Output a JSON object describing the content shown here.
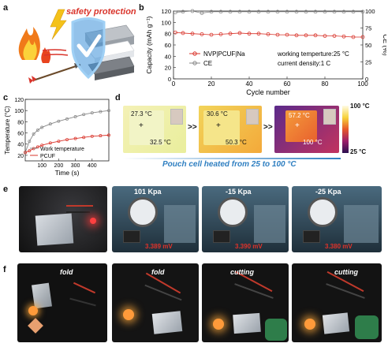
{
  "panels": {
    "a": {
      "letter": "a",
      "title": "safety protection"
    },
    "b": {
      "letter": "b",
      "xlabel": "Cycle number",
      "ylabel_left": "Capacity (mAh g⁻¹)",
      "ylabel_right": "CE (%)",
      "legend": [
        "NVP|PCUF|Na",
        "CE"
      ],
      "note_line1": "working temperture:25 °C",
      "note_line2": "current density:1 C",
      "xticks": [
        "0",
        "20",
        "40",
        "60",
        "80",
        "100"
      ],
      "yticks_left": [
        "0",
        "20",
        "40",
        "60",
        "80",
        "100",
        "120"
      ],
      "yticks_right": [
        "0",
        "25",
        "50",
        "75",
        "100"
      ]
    },
    "c": {
      "letter": "c",
      "xlabel": "Time (s)",
      "ylabel": "Temperature (°C)",
      "legend": [
        "Work temperature",
        "PCUF"
      ],
      "xticks": [
        "100",
        "200",
        "300",
        "400"
      ],
      "yticks": [
        "20",
        "40",
        "60",
        "80",
        "100",
        "120"
      ]
    },
    "d": {
      "letter": "d",
      "readings": [
        {
          "top": "27.3 °C",
          "bottom": "32.5 °C"
        },
        {
          "top": "30.6 °C",
          "bottom": "50.3 °C"
        },
        {
          "top": "57.2 °C",
          "bottom": "100 °C"
        }
      ],
      "arrows": [
        ">>",
        ">>"
      ],
      "scale_top": "100 °C",
      "scale_bottom": "25 °C",
      "caption": "Pouch cell heated from 25 to 100 °C"
    },
    "e": {
      "letter": "e",
      "pressures": [
        "101 Kpa",
        "-15 Kpa",
        "-25 Kpa"
      ],
      "voltages": [
        "3.389 mV",
        "3.390 mV",
        "3.380 mV"
      ]
    },
    "f": {
      "letter": "f",
      "actions": [
        "fold",
        "fold",
        "cutting",
        "cutting"
      ]
    }
  },
  "chart_data": [
    {
      "type": "line",
      "panel": "b",
      "xlabel": "Cycle number",
      "ylabel": "Capacity (mAh g⁻¹)",
      "xlim": [
        0,
        100
      ],
      "ylim": [
        0,
        120
      ],
      "y2label": "CE (%)",
      "y2lim": [
        0,
        100
      ],
      "series": [
        {
          "name": "NVP|PCUF|Na",
          "axis": "left",
          "color": "#d9342b",
          "x": [
            1,
            5,
            10,
            15,
            20,
            25,
            30,
            35,
            40,
            45,
            50,
            55,
            60,
            65,
            70,
            75,
            80,
            85,
            90,
            95,
            100
          ],
          "y": [
            82,
            81,
            80,
            79,
            78,
            79,
            80,
            81,
            80,
            80,
            79,
            78,
            78,
            77,
            77,
            77,
            76,
            76,
            75,
            74,
            74
          ]
        },
        {
          "name": "CE",
          "axis": "right",
          "color": "#888888",
          "x": [
            1,
            5,
            10,
            15,
            20,
            25,
            30,
            35,
            40,
            45,
            50,
            55,
            60,
            65,
            70,
            75,
            80,
            85,
            90,
            95,
            100
          ],
          "y": [
            98,
            99,
            100,
            97,
            99,
            99,
            99,
            99,
            99,
            99,
            99,
            99,
            99,
            99,
            99,
            99,
            99,
            99,
            99,
            99,
            99
          ]
        }
      ]
    },
    {
      "type": "line",
      "panel": "c",
      "xlabel": "Time (s)",
      "ylabel": "Temperature (°C)",
      "xlim": [
        0,
        500
      ],
      "ylim": [
        10,
        120
      ],
      "series": [
        {
          "name": "Work temperature",
          "color": "#888888",
          "x": [
            0,
            25,
            50,
            75,
            100,
            150,
            200,
            250,
            300,
            350,
            400,
            450,
            500
          ],
          "y": [
            25,
            45,
            58,
            65,
            70,
            76,
            81,
            85,
            89,
            93,
            96,
            98,
            100
          ]
        },
        {
          "name": "PCUF",
          "color": "#d9342b",
          "x": [
            0,
            25,
            50,
            75,
            100,
            150,
            200,
            250,
            300,
            350,
            400,
            450,
            500
          ],
          "y": [
            25,
            28,
            32,
            35,
            38,
            42,
            45,
            48,
            50,
            52,
            54,
            55,
            56
          ]
        }
      ]
    }
  ],
  "colors": {
    "accent_red": "#d9342b",
    "ce_gray": "#888888",
    "caption_blue": "#2f7fc1",
    "shield_blue": "#3a8fd8"
  }
}
